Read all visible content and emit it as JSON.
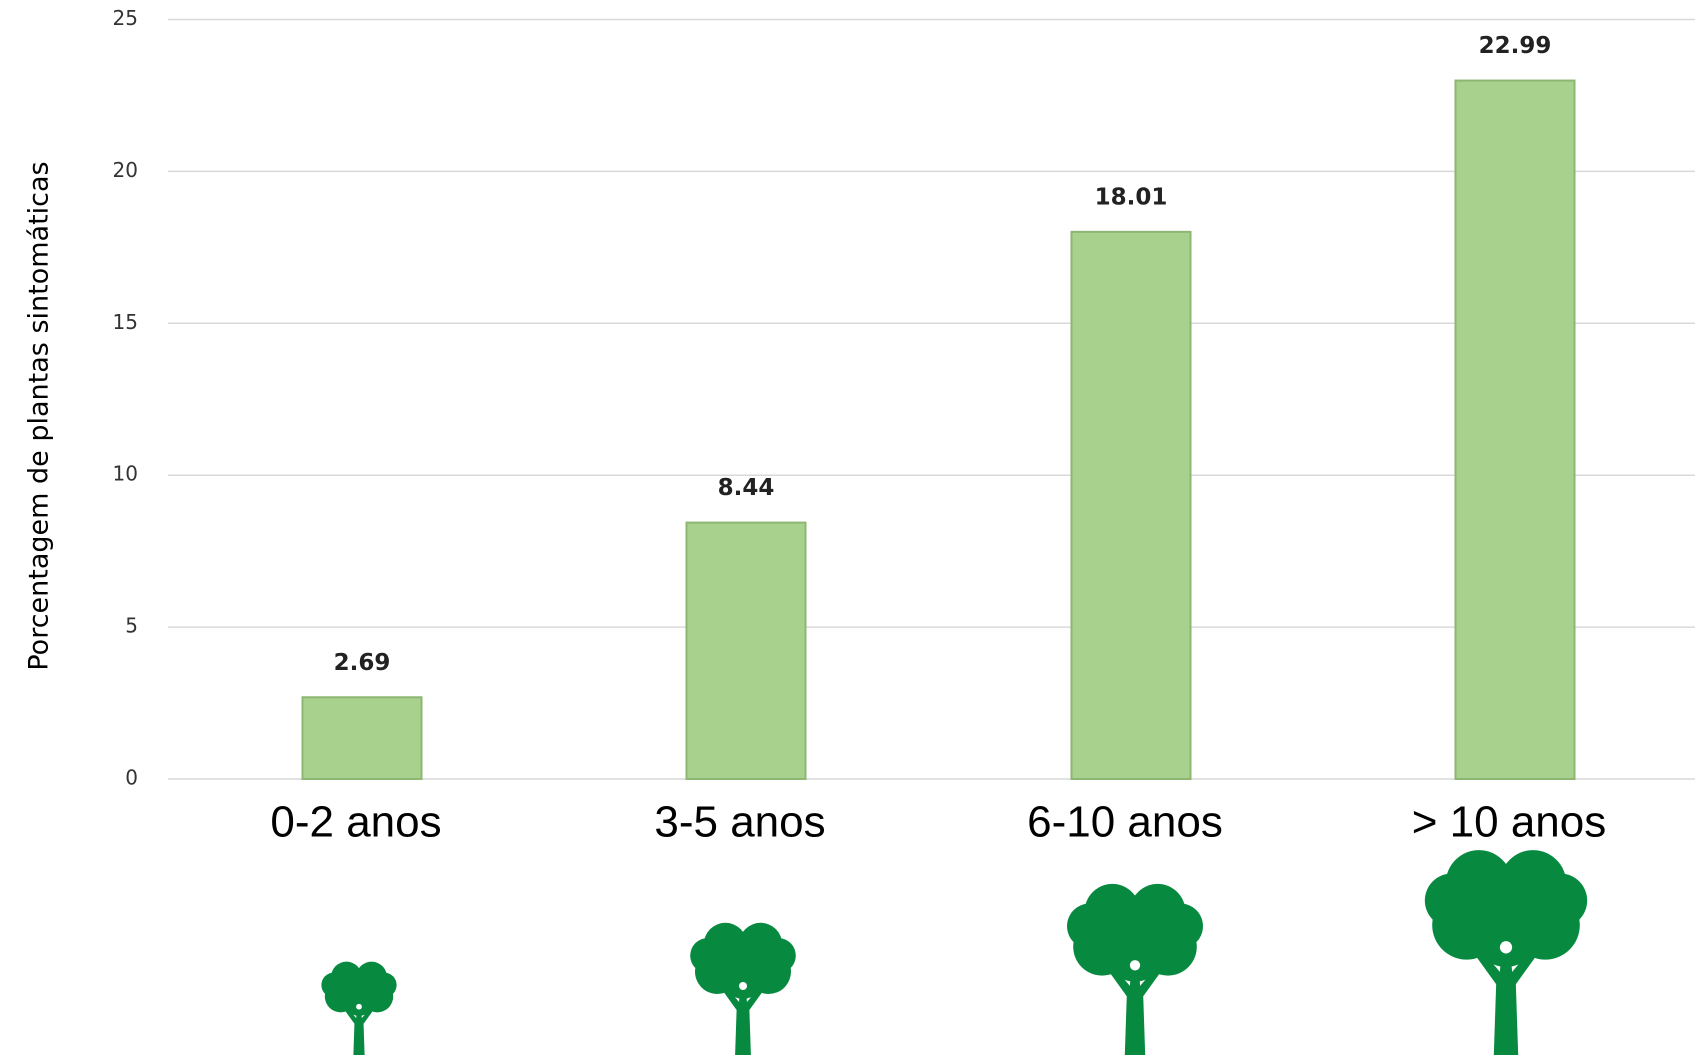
{
  "chart_data": {
    "type": "bar",
    "y_label": "Porcentagem de plantas sintomáticas",
    "categories": [
      "0-2 anos",
      "3-5 anos",
      "6-10 anos",
      "> 10 anos"
    ],
    "values": [
      2.69,
      8.44,
      18.01,
      22.99
    ],
    "color": "#a9d18e",
    "ylim": [
      0,
      25
    ],
    "yticks": [
      0,
      5,
      10,
      15,
      20,
      25
    ],
    "grid": true
  }
}
